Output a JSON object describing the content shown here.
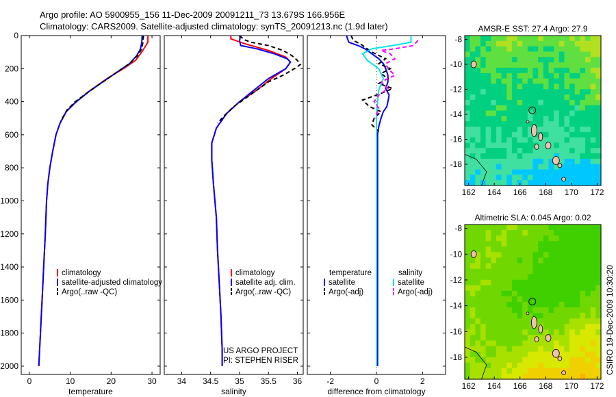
{
  "header": {
    "line1": "Argo profile: AO 5900955_156 11-Dec-2009 20091211_73 13.679S 166.956E",
    "line2": "Climatology: CARS2009. Satellite-adjusted climatology: synTS_20091213.nc (1.9d later)"
  },
  "side_text": "CSIRO 19-Dec-2009 10:30:20",
  "credit": {
    "line1": "US ARGO PROJECT",
    "line2": "PI: STEPHEN RISER"
  },
  "colors": {
    "red": "#ff0000",
    "blue": "#0000ff",
    "black": "#000000",
    "cyan": "#00e5ee",
    "magenta": "#ff00ff"
  },
  "chart_data": [
    {
      "type": "line",
      "id": "temperature",
      "xlabel": "temperature",
      "xlim": [
        -2,
        32
      ],
      "ylim": [
        0,
        2050
      ],
      "yreversed": true,
      "xticks": [
        0,
        10,
        20,
        30
      ],
      "yticks": [
        0,
        200,
        400,
        600,
        800,
        1000,
        1200,
        1400,
        1600,
        1800,
        2000
      ],
      "legend": [
        "climatology",
        "satellite-adjusted climatology",
        "Argo(..raw -QC)"
      ],
      "series": [
        {
          "name": "climatology",
          "color": "red",
          "dash": "",
          "points": [
            [
              29,
              0
            ],
            [
              29,
              40
            ],
            [
              28.5,
              60
            ],
            [
              27.5,
              100
            ],
            [
              26,
              150
            ],
            [
              23,
              200
            ],
            [
              19,
              260
            ],
            [
              15,
              330
            ],
            [
              11.5,
              400
            ],
            [
              9,
              460
            ],
            [
              7.5,
              530
            ],
            [
              6.5,
              600
            ],
            [
              5.7,
              700
            ],
            [
              5,
              800
            ],
            [
              4.5,
              900
            ],
            [
              4.2,
              1000
            ],
            [
              3.9,
              1200
            ],
            [
              3.5,
              1400
            ],
            [
              3.1,
              1600
            ],
            [
              2.7,
              1800
            ],
            [
              2.3,
              2000
            ]
          ]
        },
        {
          "name": "satellite-adjusted climatology",
          "color": "blue",
          "dash": "",
          "points": [
            [
              27.6,
              0
            ],
            [
              27.5,
              40
            ],
            [
              27.2,
              80
            ],
            [
              26.3,
              120
            ],
            [
              24.5,
              170
            ],
            [
              21.5,
              220
            ],
            [
              18,
              280
            ],
            [
              14.5,
              340
            ],
            [
              11,
              410
            ],
            [
              9,
              460
            ],
            [
              7.5,
              530
            ],
            [
              6.5,
              600
            ],
            [
              5.7,
              700
            ],
            [
              5,
              800
            ],
            [
              4.5,
              900
            ],
            [
              4.2,
              1000
            ],
            [
              3.9,
              1200
            ],
            [
              3.5,
              1400
            ],
            [
              3.1,
              1600
            ],
            [
              2.7,
              1800
            ],
            [
              2.3,
              2000
            ]
          ]
        },
        {
          "name": "Argo(..raw -QC)",
          "color": "black",
          "dash": "6,4",
          "points": [
            [
              27.9,
              0
            ],
            [
              27.8,
              40
            ],
            [
              27.5,
              80
            ],
            [
              26.5,
              120
            ],
            [
              24.5,
              170
            ],
            [
              21.5,
              220
            ],
            [
              18,
              280
            ],
            [
              14.5,
              340
            ],
            [
              11.2,
              400
            ],
            [
              9.2,
              450
            ],
            [
              7.6,
              520
            ]
          ]
        }
      ]
    },
    {
      "type": "line",
      "id": "salinity",
      "xlabel": "salinity",
      "xlim": [
        33.7,
        36.1
      ],
      "ylim": [
        0,
        2050
      ],
      "yreversed": true,
      "xticks": [
        34,
        34.5,
        35,
        35.5,
        36
      ],
      "legend": [
        "climatology",
        "satellite adj. clim.",
        "Argo(..raw -QC)"
      ],
      "series": [
        {
          "name": "climatology",
          "color": "red",
          "dash": "",
          "points": [
            [
              34.85,
              0
            ],
            [
              34.85,
              20
            ],
            [
              35.1,
              50
            ],
            [
              35.5,
              90
            ],
            [
              35.8,
              130
            ],
            [
              35.88,
              160
            ],
            [
              35.8,
              200
            ],
            [
              35.55,
              260
            ],
            [
              35.3,
              330
            ],
            [
              35,
              400
            ],
            [
              34.78,
              470
            ],
            [
              34.6,
              560
            ],
            [
              34.52,
              650
            ],
            [
              34.52,
              750
            ],
            [
              34.55,
              900
            ],
            [
              34.6,
              1100
            ],
            [
              34.62,
              1300
            ],
            [
              34.65,
              1500
            ],
            [
              34.68,
              1700
            ],
            [
              34.7,
              1900
            ],
            [
              34.7,
              2000
            ]
          ]
        },
        {
          "name": "satellite adj. clim.",
          "color": "blue",
          "dash": "",
          "points": [
            [
              35.02,
              0
            ],
            [
              35.0,
              30
            ],
            [
              35.02,
              60
            ],
            [
              35.3,
              80
            ],
            [
              35.6,
              110
            ],
            [
              35.82,
              140
            ],
            [
              35.88,
              160
            ],
            [
              35.8,
              200
            ],
            [
              35.5,
              260
            ],
            [
              35.25,
              330
            ],
            [
              35,
              400
            ],
            [
              34.78,
              470
            ],
            [
              34.6,
              560
            ],
            [
              34.52,
              650
            ],
            [
              34.52,
              750
            ],
            [
              34.55,
              900
            ],
            [
              34.6,
              1100
            ],
            [
              34.62,
              1300
            ],
            [
              34.65,
              1500
            ],
            [
              34.68,
              1700
            ],
            [
              34.7,
              1900
            ],
            [
              34.7,
              2000
            ]
          ]
        },
        {
          "name": "Argo(..raw -QC)",
          "color": "black",
          "dash": "6,4",
          "points": [
            [
              35.0,
              0
            ],
            [
              35.08,
              25
            ],
            [
              35.2,
              40
            ],
            [
              35.5,
              60
            ],
            [
              35.75,
              90
            ],
            [
              35.9,
              120
            ],
            [
              36.0,
              150
            ],
            [
              36.05,
              175
            ],
            [
              35.95,
              200
            ],
            [
              35.75,
              240
            ],
            [
              35.5,
              280
            ],
            [
              35.3,
              330
            ],
            [
              35.1,
              380
            ],
            [
              34.9,
              430
            ],
            [
              34.75,
              480
            ],
            [
              34.62,
              530
            ]
          ]
        }
      ]
    },
    {
      "type": "line",
      "id": "difference",
      "xlabel": "difference from climatology",
      "xlim": [
        -3,
        3
      ],
      "ylim": [
        0,
        2050
      ],
      "yreversed": true,
      "xticks": [
        -2,
        0,
        2
      ],
      "legend_headers": [
        "temperature",
        "salinity"
      ],
      "legend": [
        "satellite",
        "Argo(-adj)",
        "satellite",
        "Argo(-adj)"
      ],
      "series": [
        {
          "name": "temperature satellite",
          "color": "blue",
          "dash": "",
          "points": [
            [
              -1.3,
              0
            ],
            [
              -1.2,
              40
            ],
            [
              -0.8,
              60
            ],
            [
              -0.5,
              80
            ],
            [
              -0.2,
              110
            ],
            [
              0.1,
              140
            ],
            [
              0.3,
              170
            ],
            [
              0.4,
              200
            ],
            [
              0.5,
              240
            ],
            [
              0.5,
              280
            ],
            [
              0.4,
              320
            ],
            [
              0.55,
              360
            ],
            [
              0.5,
              400
            ],
            [
              0.45,
              430
            ],
            [
              0.3,
              460
            ],
            [
              0.2,
              500
            ],
            [
              0.1,
              550
            ],
            [
              0.05,
              600
            ],
            [
              0.05,
              700
            ],
            [
              0.05,
              1000
            ],
            [
              0.05,
              1500
            ],
            [
              0.05,
              2000
            ]
          ]
        },
        {
          "name": "temperature Argo(-adj)",
          "color": "black",
          "dash": "6,4",
          "points": [
            [
              -1.1,
              0
            ],
            [
              -1.0,
              30
            ],
            [
              -0.7,
              50
            ],
            [
              -0.4,
              80
            ],
            [
              -0.2,
              100
            ],
            [
              0.1,
              120
            ],
            [
              0.4,
              140
            ],
            [
              0.1,
              170
            ],
            [
              0.6,
              200
            ],
            [
              0.2,
              230
            ],
            [
              0.5,
              260
            ],
            [
              0.1,
              290
            ],
            [
              0.7,
              320
            ],
            [
              0.2,
              350
            ],
            [
              -0.6,
              390
            ],
            [
              -0.3,
              430
            ],
            [
              0.2,
              460
            ],
            [
              -0.1,
              500
            ],
            [
              -0.2,
              540
            ],
            [
              0.1,
              580
            ]
          ]
        },
        {
          "name": "salinity satellite",
          "color": "cyan",
          "dash": "",
          "points": [
            [
              1.5,
              0
            ],
            [
              1.5,
              40
            ],
            [
              0.7,
              60
            ],
            [
              -0.2,
              80
            ],
            [
              -0.6,
              110
            ],
            [
              -0.4,
              150
            ],
            [
              0.1,
              200
            ],
            [
              0.3,
              260
            ],
            [
              0.1,
              330
            ],
            [
              0.05,
              400
            ],
            [
              0,
              480
            ],
            [
              0,
              560
            ],
            [
              0,
              650
            ],
            [
              0,
              800
            ],
            [
              0,
              1000
            ],
            [
              0,
              1500
            ],
            [
              0,
              2000
            ]
          ]
        },
        {
          "name": "salinity Argo(-adj)",
          "color": "magenta",
          "dash": "6,4",
          "points": [
            [
              1.8,
              30
            ],
            [
              1.6,
              60
            ],
            [
              0.8,
              80
            ],
            [
              0.2,
              90
            ],
            [
              0.6,
              110
            ],
            [
              0.8,
              140
            ],
            [
              0.4,
              170
            ],
            [
              0.5,
              200
            ],
            [
              0.8,
              240
            ],
            [
              0.2,
              280
            ],
            [
              0.5,
              320
            ],
            [
              0.1,
              360
            ],
            [
              -0.1,
              400
            ],
            [
              0.1,
              440
            ],
            [
              -0.05,
              500
            ]
          ]
        }
      ]
    }
  ],
  "maps": [
    {
      "id": "sst-map",
      "title": "AMSR-E SST: 27.4 Argo: 27.9",
      "lon_range": [
        161.7,
        172.3
      ],
      "lat_range": [
        -19.7,
        -7.7
      ],
      "xticks": [
        162,
        164,
        166,
        168,
        170,
        172
      ],
      "yticks": [
        -8,
        -10,
        -12,
        -14,
        -16,
        -18
      ],
      "colormap": [
        "#00c8ff",
        "#40e0a0",
        "#00d080",
        "#60e040",
        "#b0e020",
        "#e8f000"
      ],
      "argo_lon": 166.956,
      "argo_lat": -13.679
    },
    {
      "id": "sla-map",
      "title": "Altimetric SLA: 0.045 Argo: 0.02",
      "lon_range": [
        161.7,
        172.3
      ],
      "lat_range": [
        -19.7,
        -7.7
      ],
      "xticks": [
        162,
        164,
        166,
        168,
        170,
        172
      ],
      "yticks": [
        -8,
        -10,
        -12,
        -14,
        -16,
        -18
      ],
      "colormap": [
        "#40d000",
        "#70d800",
        "#a8e000",
        "#d8e800",
        "#f0d000",
        "#ffb000"
      ],
      "argo_lon": 166.956,
      "argo_lat": -13.679
    }
  ]
}
